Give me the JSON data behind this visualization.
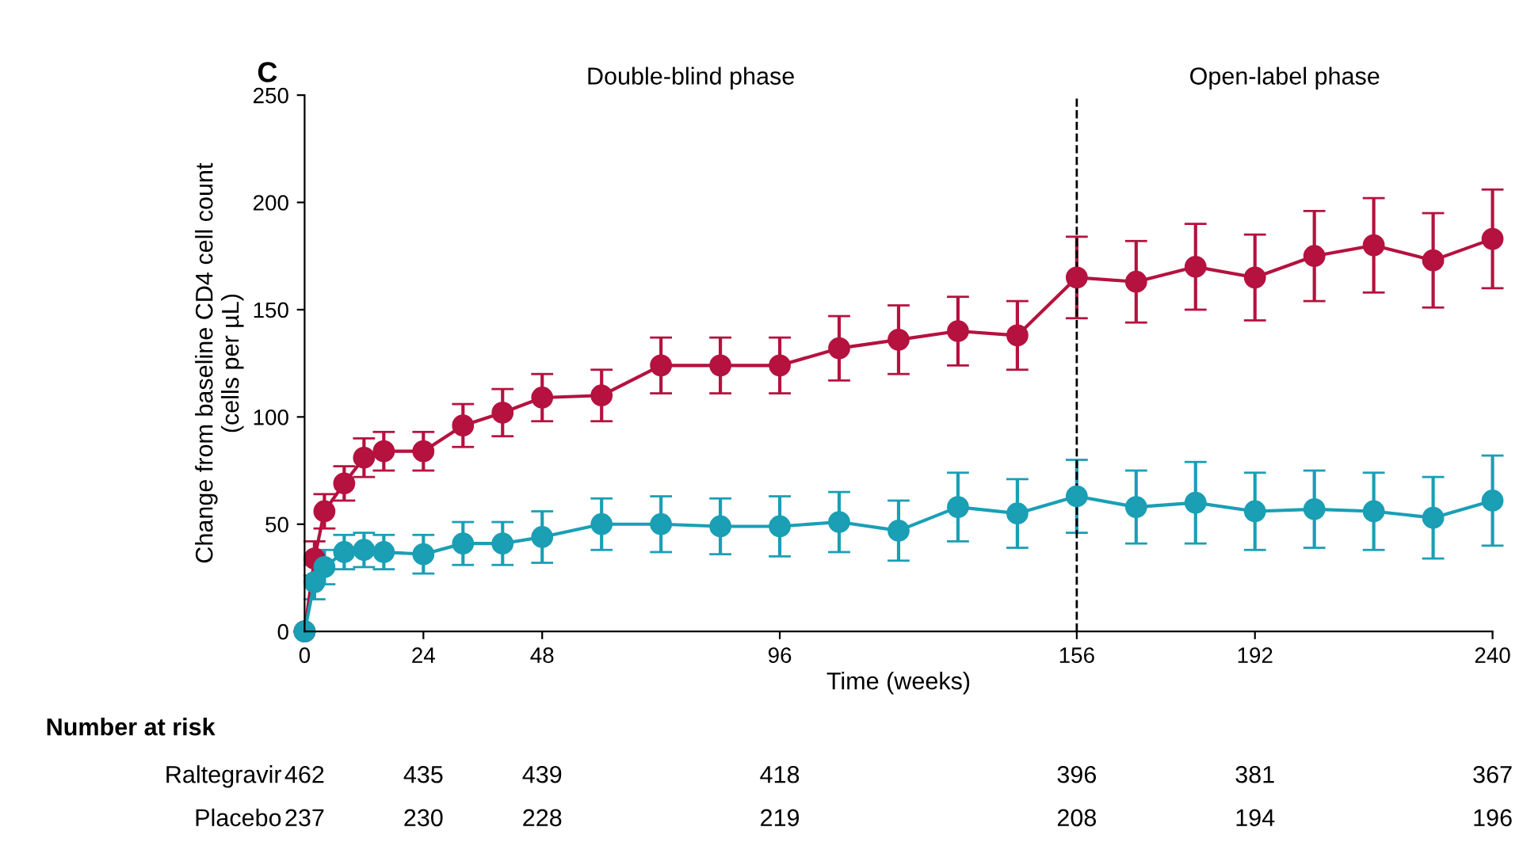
{
  "chart_data": {
    "type": "line",
    "title": "C",
    "xlabel": "Time (weeks)",
    "ylabel": "Change from baseline CD4 cell count\n(cells per µL)",
    "x": [
      0,
      2,
      4,
      8,
      12,
      16,
      24,
      32,
      40,
      48,
      60,
      72,
      84,
      96,
      108,
      120,
      132,
      144,
      156,
      168,
      180,
      192,
      204,
      216,
      228,
      240
    ],
    "series": [
      {
        "color": "#b5123f",
        "values": [
          0,
          34,
          56,
          69,
          81,
          84,
          84,
          96,
          102,
          109,
          110,
          124,
          124,
          124,
          132,
          136,
          140,
          138,
          165,
          163,
          170,
          165,
          175,
          180,
          173,
          183
        ],
        "errors": [
          0,
          8,
          8,
          8,
          9,
          9,
          9,
          10,
          11,
          11,
          12,
          13,
          13,
          13,
          15,
          16,
          16,
          16,
          19,
          19,
          20,
          20,
          21,
          22,
          22,
          23
        ]
      },
      {
        "color": "#1a9fb5",
        "values": [
          0,
          23,
          30,
          37,
          38,
          37,
          36,
          41,
          41,
          44,
          50,
          50,
          49,
          49,
          51,
          47,
          58,
          55,
          63,
          58,
          60,
          56,
          57,
          56,
          53,
          61
        ],
        "errors": [
          0,
          8,
          8,
          8,
          8,
          8,
          9,
          10,
          10,
          12,
          12,
          13,
          13,
          14,
          14,
          14,
          16,
          16,
          17,
          17,
          19,
          18,
          18,
          18,
          19,
          21
        ]
      }
    ],
    "xlim": [
      0,
      240
    ],
    "xticks": [
      0,
      24,
      48,
      96,
      156,
      192,
      240
    ],
    "ylim": [
      0,
      250
    ],
    "yticks": [
      0,
      50,
      100,
      150,
      200,
      250
    ],
    "marker": "circle",
    "line_style": "solid",
    "grid": false,
    "legend": false,
    "ref_lines": [
      {
        "axis": "x",
        "value": 156,
        "color": "#000000",
        "line_style": "dashed"
      }
    ],
    "annotations": [
      "Double-blind phase",
      "Open-label phase",
      "Number at risk",
      "Raltegravir",
      "462",
      "435",
      "439",
      "418",
      "396",
      "381",
      "367",
      "Placebo",
      "237",
      "230",
      "228",
      "219",
      "208",
      "194",
      "196"
    ]
  }
}
